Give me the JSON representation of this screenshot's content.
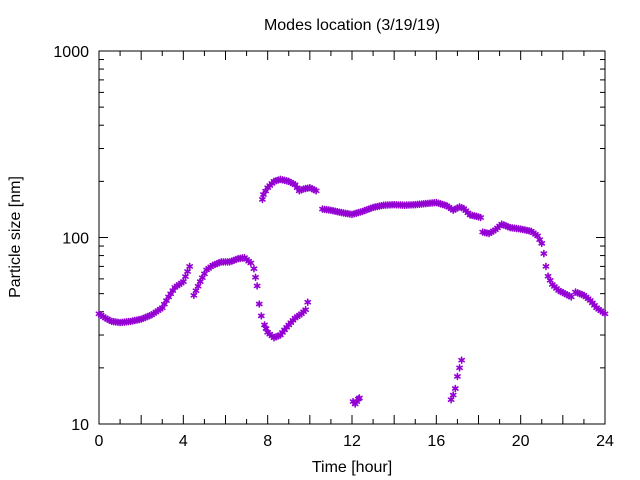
{
  "chart_data": {
    "type": "scatter",
    "title": "Modes location (3/19/19)",
    "xlabel": "Time [hour]",
    "ylabel": "Particle size [nm]",
    "xlim": [
      0,
      24
    ],
    "ylim": [
      10,
      1000
    ],
    "yscale": "log",
    "x_ticks": [
      0,
      4,
      8,
      12,
      16,
      20,
      24
    ],
    "x_tick_labels": [
      "0",
      "4",
      "8",
      "12",
      "16",
      "20",
      "24"
    ],
    "y_ticks": [
      10,
      100,
      1000
    ],
    "y_tick_labels": [
      "10",
      "100",
      "1000"
    ],
    "grid": false,
    "legend": "none",
    "marker_color": "#9400D3",
    "marker": "asterisk",
    "anchors": [
      [
        [
          0,
          39
        ],
        [
          0.3,
          37
        ],
        [
          0.6,
          35.5
        ],
        [
          1.0,
          35
        ],
        [
          1.5,
          35.5
        ],
        [
          2.0,
          36.5
        ],
        [
          2.5,
          38.5
        ],
        [
          3.0,
          42
        ],
        [
          3.3,
          48
        ],
        [
          3.6,
          54
        ],
        [
          4.0,
          58
        ],
        [
          4.3,
          70
        ]
      ],
      [
        [
          4.5,
          49
        ],
        [
          4.8,
          58
        ],
        [
          5.1,
          67
        ],
        [
          5.4,
          71
        ],
        [
          5.8,
          74
        ],
        [
          6.2,
          74
        ],
        [
          6.6,
          77
        ],
        [
          6.9,
          78
        ],
        [
          7.2,
          73
        ],
        [
          7.35,
          68
        ],
        [
          7.5,
          55
        ],
        [
          7.6,
          44
        ],
        [
          7.7,
          38
        ],
        [
          7.85,
          34
        ],
        [
          8.0,
          31
        ],
        [
          8.3,
          29
        ],
        [
          8.6,
          30
        ],
        [
          8.9,
          33
        ],
        [
          9.3,
          37
        ],
        [
          9.6,
          39
        ],
        [
          9.8,
          41
        ],
        [
          9.9,
          45
        ]
      ],
      [
        [
          7.75,
          160
        ],
        [
          7.8,
          170
        ],
        [
          8.0,
          185
        ],
        [
          8.3,
          200
        ],
        [
          8.6,
          205
        ],
        [
          9.0,
          200
        ],
        [
          9.3,
          192
        ],
        [
          9.5,
          178
        ],
        [
          9.7,
          182
        ],
        [
          10.0,
          185
        ],
        [
          10.3,
          178
        ]
      ],
      [
        [
          10.6,
          142
        ],
        [
          11.0,
          140
        ],
        [
          11.5,
          136
        ],
        [
          12.0,
          133
        ],
        [
          12.5,
          138
        ],
        [
          13.0,
          145
        ],
        [
          13.5,
          149
        ],
        [
          14.0,
          150
        ],
        [
          14.5,
          149
        ],
        [
          15.0,
          150
        ],
        [
          15.5,
          152
        ],
        [
          16.0,
          154
        ],
        [
          16.5,
          148
        ],
        [
          16.8,
          140
        ],
        [
          17.1,
          146
        ],
        [
          17.3,
          143
        ],
        [
          17.6,
          132
        ],
        [
          17.9,
          130
        ],
        [
          18.1,
          128
        ]
      ],
      [
        [
          18.2,
          107
        ],
        [
          18.5,
          105
        ],
        [
          18.8,
          110
        ],
        [
          19.1,
          118
        ],
        [
          19.5,
          113
        ],
        [
          20.0,
          111
        ],
        [
          20.5,
          108
        ],
        [
          20.8,
          102
        ],
        [
          21.0,
          93
        ],
        [
          21.1,
          82
        ],
        [
          21.2,
          70
        ],
        [
          21.3,
          62
        ],
        [
          21.5,
          56
        ],
        [
          21.8,
          52
        ],
        [
          22.1,
          50
        ],
        [
          22.4,
          48
        ]
      ],
      [
        [
          22.6,
          51
        ],
        [
          23.0,
          49
        ],
        [
          23.3,
          46
        ],
        [
          23.6,
          42
        ],
        [
          24.0,
          39
        ]
      ],
      [
        [
          12.05,
          13.2
        ],
        [
          12.15,
          12.8
        ],
        [
          12.3,
          13.6
        ],
        [
          12.35,
          13.8
        ]
      ],
      [
        [
          16.7,
          13.5
        ],
        [
          16.8,
          14.3
        ],
        [
          16.9,
          15.5
        ],
        [
          17.0,
          18.0
        ],
        [
          17.1,
          20.0
        ],
        [
          17.2,
          22.0
        ]
      ]
    ]
  }
}
